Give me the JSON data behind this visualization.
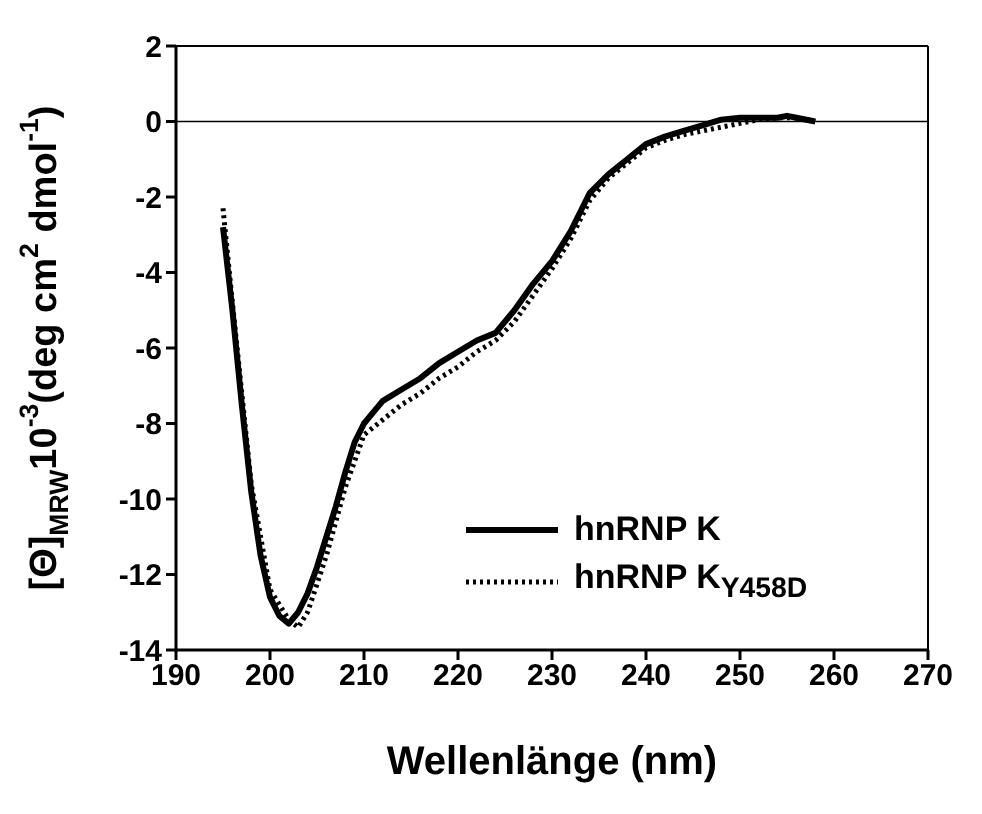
{
  "chart_data": {
    "type": "line",
    "xlabel": "Wellenlänge (nm)",
    "ylabel": "[Θ]$_{MRW}$10$^{-3}$(deg cm$^{2}$ dmol$^{-1}$)",
    "xlim": [
      190,
      270
    ],
    "xticks": [
      190,
      200,
      210,
      220,
      230,
      240,
      250,
      260,
      270
    ],
    "ylim": [
      -14,
      2
    ],
    "yticks": [
      -14,
      -12,
      -10,
      -8,
      -6,
      -4,
      -2,
      0,
      2
    ],
    "ref_lines": [
      {
        "axis": "y",
        "value": 0,
        "color": "#000000"
      }
    ],
    "legend": "bottom right",
    "grid": false,
    "marker": "none",
    "series": [
      {
        "name": "hnRNP K",
        "color": "#000000",
        "line_style": "solid",
        "x": [
          195,
          196,
          197,
          198,
          199,
          200,
          201,
          202,
          203,
          204,
          205,
          206,
          207,
          208,
          209,
          210,
          211,
          212,
          214,
          216,
          218,
          220,
          222,
          224,
          226,
          228,
          230,
          232,
          234,
          236,
          238,
          240,
          242,
          244,
          246,
          248,
          250,
          252,
          254,
          255,
          256,
          258
        ],
        "values": [
          -2.8,
          -5,
          -7.5,
          -9.8,
          -11.5,
          -12.6,
          -13.1,
          -13.3,
          -13,
          -12.5,
          -11.8,
          -11,
          -10.2,
          -9.3,
          -8.5,
          -8,
          -7.7,
          -7.4,
          -7.1,
          -6.8,
          -6.4,
          -6.1,
          -5.8,
          -5.6,
          -5,
          -4.3,
          -3.7,
          -2.9,
          -1.9,
          -1.4,
          -1,
          -0.6,
          -0.4,
          -0.25,
          -0.1,
          0.05,
          0.1,
          0.1,
          0.1,
          0.15,
          0.1,
          0
        ]
      },
      {
        "name": "hnRNP K$_{Y458D}$",
        "color": "#000000",
        "line_style": "dotted",
        "x": [
          195,
          196,
          198,
          200,
          202,
          203,
          204,
          206,
          208,
          210,
          212,
          214,
          216,
          218,
          220,
          222,
          224,
          226,
          228,
          230,
          232,
          234,
          236,
          238,
          240,
          242,
          244,
          246,
          248,
          250,
          252,
          254,
          256,
          258
        ],
        "values": [
          -2.3,
          -4.8,
          -9.6,
          -12.4,
          -13.2,
          -13.4,
          -13,
          -11.5,
          -9.7,
          -8.3,
          -7.9,
          -7.5,
          -7.2,
          -6.8,
          -6.5,
          -6.1,
          -5.8,
          -5.3,
          -4.6,
          -3.9,
          -3.1,
          -2.1,
          -1.5,
          -1.1,
          -0.7,
          -0.5,
          -0.35,
          -0.25,
          -0.15,
          -0.05,
          0.05,
          0.1,
          0.1,
          0
        ]
      }
    ]
  }
}
